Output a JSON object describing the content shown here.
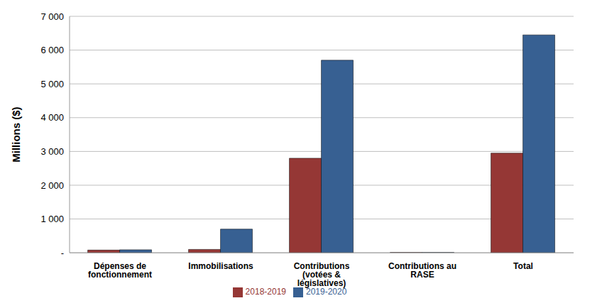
{
  "chart_data": {
    "type": "bar",
    "y_label": "Millions ($)",
    "categories": [
      "Dépenses de fonctionnement",
      "Immobilisations",
      "Contributions (votées & législatives)",
      "Contributions au RASE",
      "Total"
    ],
    "series": [
      {
        "name": "2018-2019",
        "color": "#953735",
        "values": [
          80,
          100,
          2800,
          10,
          2950
        ]
      },
      {
        "name": "2019-2020",
        "color": "#376092",
        "values": [
          90,
          700,
          5700,
          10,
          6450
        ]
      }
    ],
    "ylim": [
      0,
      7000
    ],
    "yticks": [
      {
        "value": 0,
        "label": "-"
      },
      {
        "value": 1000,
        "label": "1 000"
      },
      {
        "value": 2000,
        "label": "2 000"
      },
      {
        "value": 3000,
        "label": "3 000"
      },
      {
        "value": 4000,
        "label": "4 000"
      },
      {
        "value": 5000,
        "label": "5 000"
      },
      {
        "value": 6000,
        "label": "6 000"
      },
      {
        "value": 7000,
        "label": "7 000"
      }
    ],
    "grid": true,
    "legend": "bottom"
  }
}
